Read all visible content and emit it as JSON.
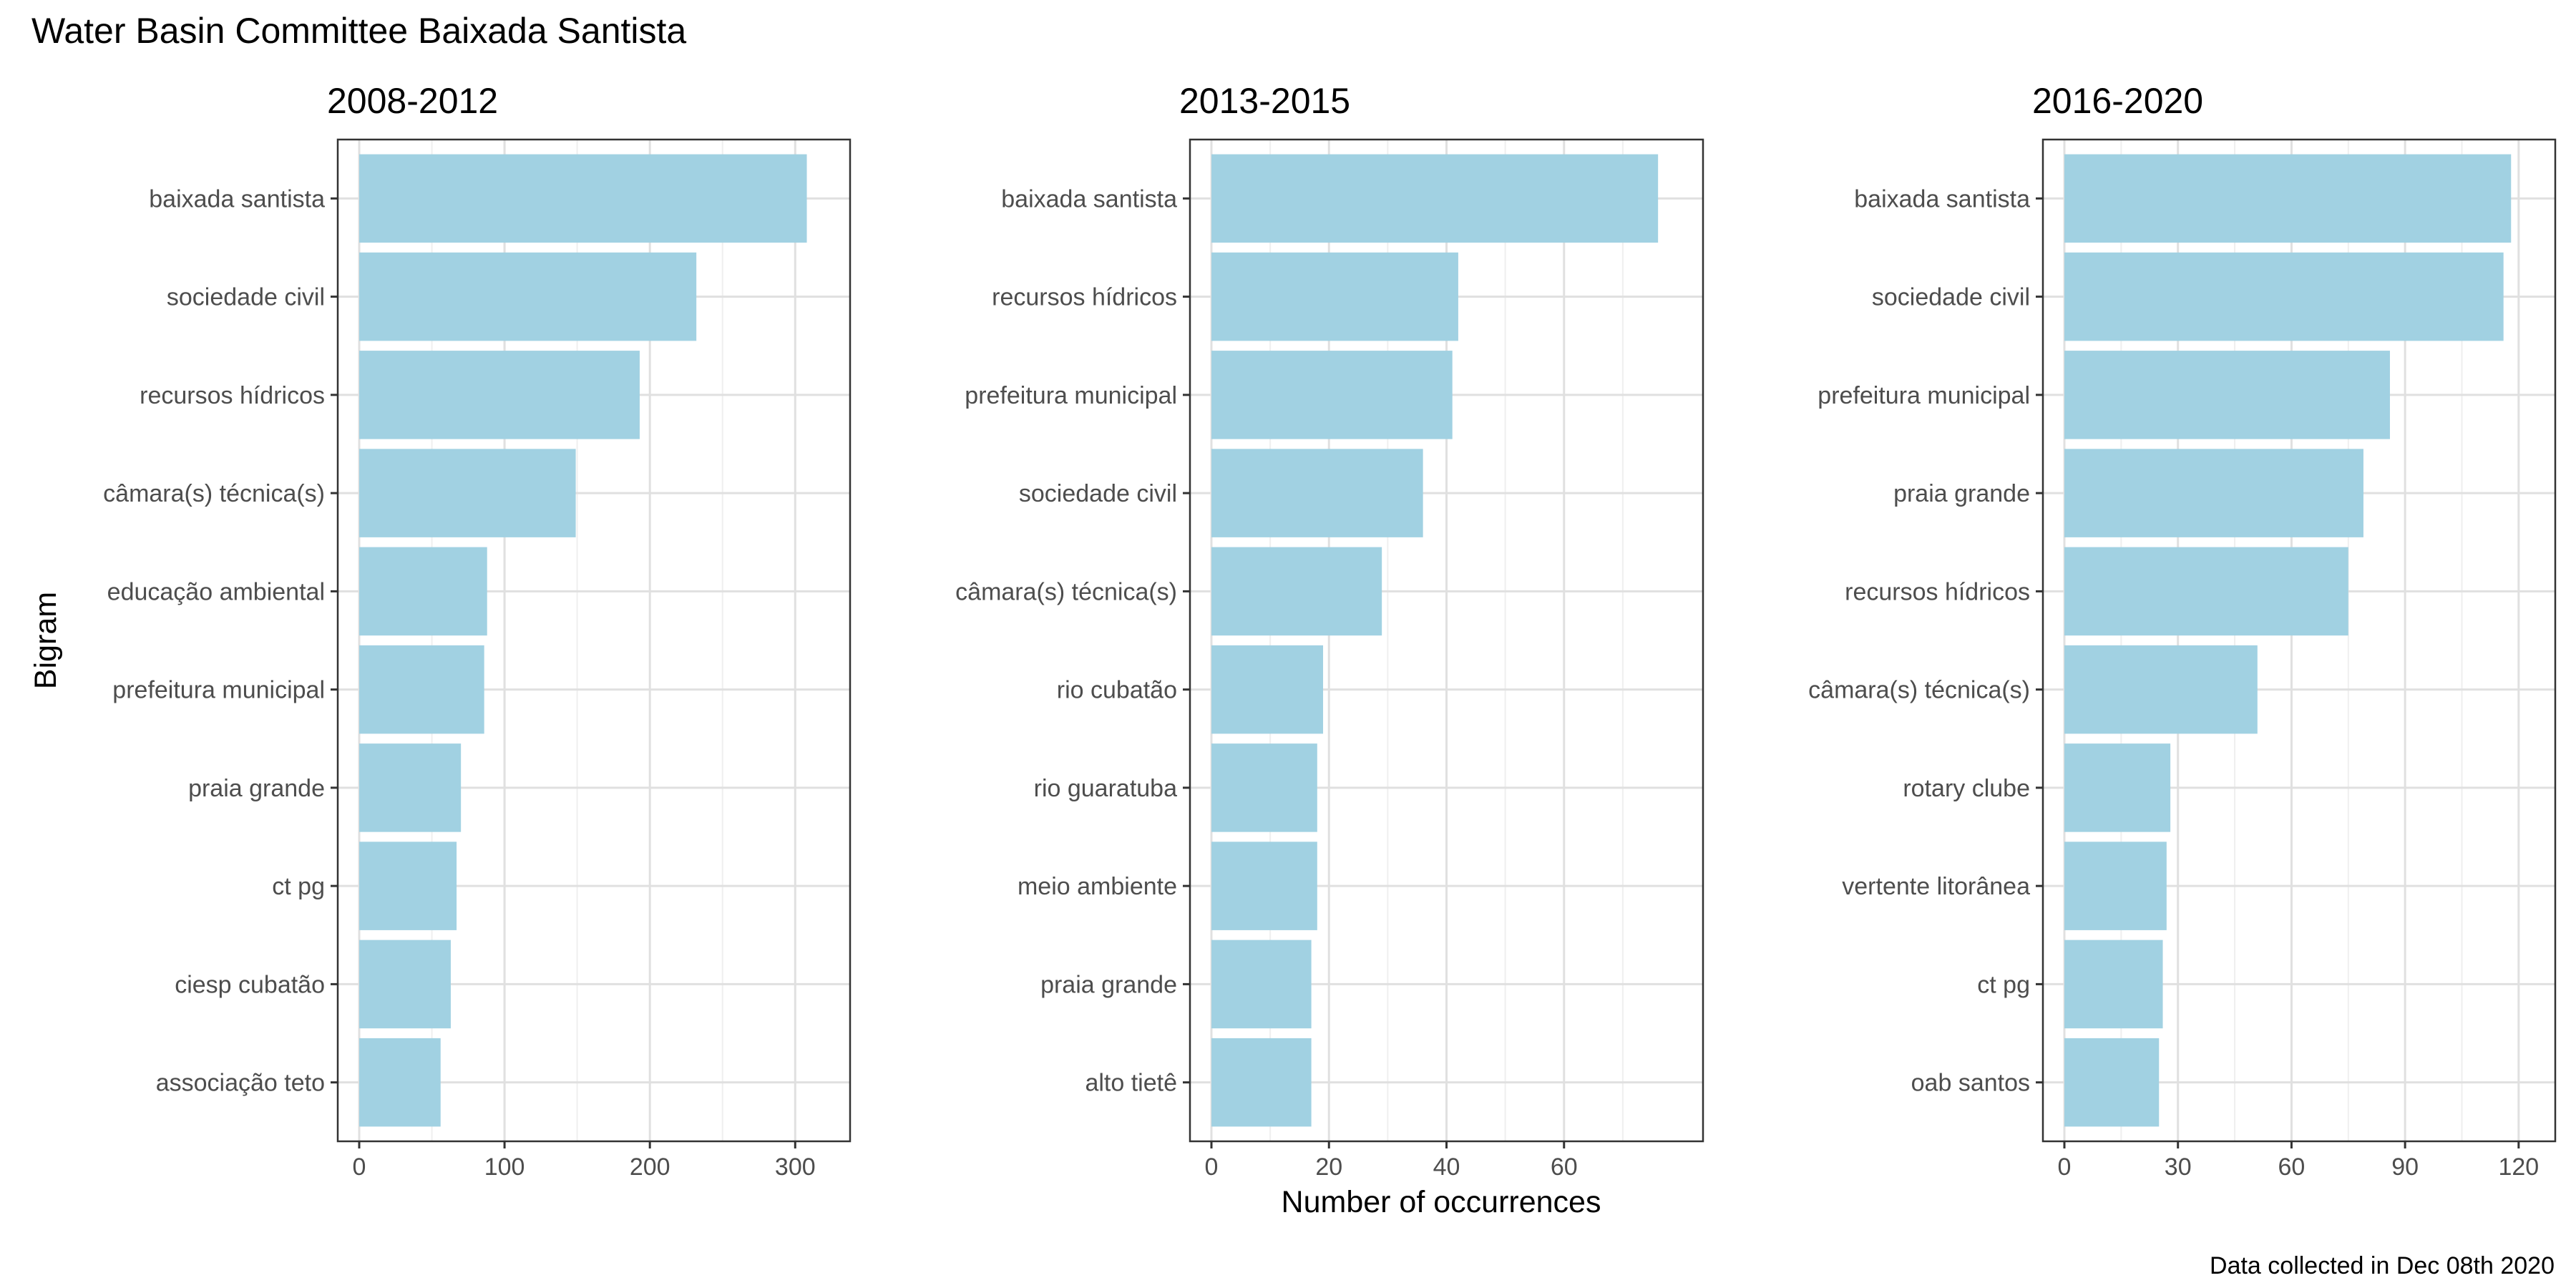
{
  "title": "Water Basin Committee Baixada Santista",
  "ylabel": "Bigram",
  "xlabel": "Number of occurrences",
  "caption": "Data collected in Dec 08th 2020",
  "colors": {
    "bar": "#a1d1e2",
    "panel_border": "#333333",
    "grid_major": "#e0e0e0",
    "grid_minor": "#efefef",
    "tick_text": "#4d4d4d"
  },
  "chart_data": [
    {
      "type": "bar",
      "orientation": "horizontal",
      "title": "2008-2012",
      "categories": [
        "baixada santista",
        "sociedade civil",
        "recursos hídricos",
        "câmara(s) técnica(s)",
        "educação ambiental",
        "prefeitura municipal",
        "praia grande",
        "ct pg",
        "ciesp cubatão",
        "associação teto"
      ],
      "values": [
        308,
        232,
        193,
        149,
        88,
        86,
        70,
        67,
        63,
        56
      ],
      "xlim": [
        0,
        323
      ],
      "xticks": [
        0,
        100,
        200,
        300
      ],
      "grid": true
    },
    {
      "type": "bar",
      "orientation": "horizontal",
      "title": "2013-2015",
      "categories": [
        "baixada santista",
        "recursos hídricos",
        "prefeitura municipal",
        "sociedade civil",
        "câmara(s) técnica(s)",
        "rio cubatão",
        "rio guaratuba",
        "meio ambiente",
        "praia grande",
        "alto tietê"
      ],
      "values": [
        76,
        42,
        41,
        36,
        29,
        19,
        18,
        18,
        17,
        17
      ],
      "xlim": [
        0,
        80
      ],
      "xticks": [
        0,
        20,
        40,
        60
      ],
      "grid": true
    },
    {
      "type": "bar",
      "orientation": "horizontal",
      "title": "2016-2020",
      "categories": [
        "baixada santista",
        "sociedade civil",
        "prefeitura municipal",
        "praia grande",
        "recursos hídricos",
        "câmara(s) técnica(s)",
        "rotary clube",
        "vertente litorânea",
        "ct pg",
        "oab santos"
      ],
      "values": [
        118,
        116,
        86,
        79,
        75,
        51,
        28,
        27,
        26,
        25
      ],
      "xlim": [
        0,
        124
      ],
      "xticks": [
        0,
        30,
        60,
        90,
        120
      ],
      "grid": true
    }
  ]
}
